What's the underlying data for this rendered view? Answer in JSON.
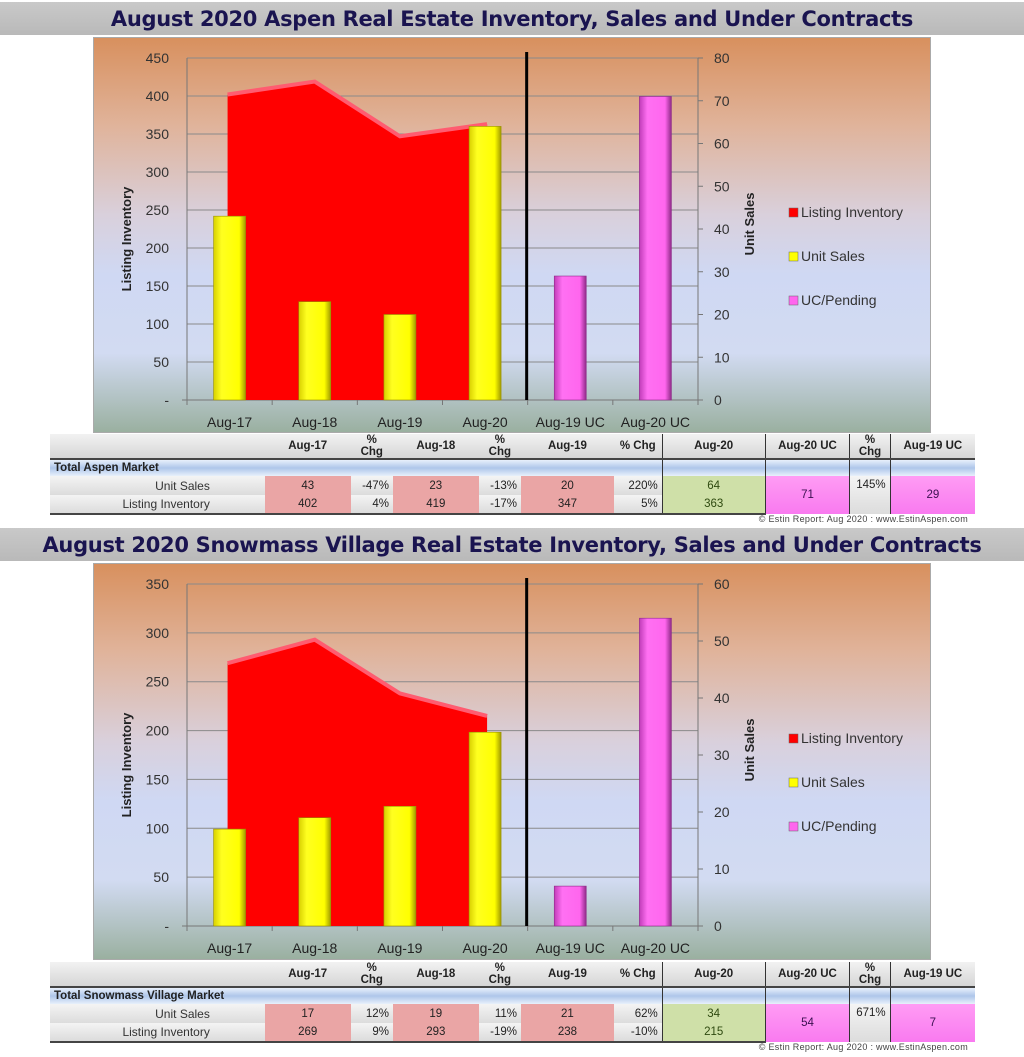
{
  "aspen": {
    "title": "August 2020 Aspen Real Estate Inventory, Sales and Under Contracts",
    "left_axis_label": "Listing Inventory",
    "right_axis_label": "Unit Sales",
    "left_ticks": [
      "450",
      "400",
      "350",
      "300",
      "250",
      "200",
      "150",
      "100",
      "50",
      "-"
    ],
    "right_ticks": [
      "80",
      "70",
      "60",
      "50",
      "40",
      "30",
      "20",
      "10",
      "0"
    ],
    "categories": [
      "Aug-17",
      "Aug-18",
      "Aug-19",
      "Aug-20",
      "Aug-19 UC",
      "Aug-20 UC"
    ],
    "legend": [
      "Listing Inventory",
      "Unit Sales",
      "UC/Pending"
    ],
    "table": {
      "headers": [
        "Aug-17",
        "% Chg",
        "Aug-18",
        "% Chg",
        "Aug-19",
        "% Chg",
        "Aug-20",
        "Aug-20 UC",
        "% Chg",
        "Aug-19 UC"
      ],
      "section_label": "Total Aspen Market",
      "rows": [
        {
          "label": "Unit Sales",
          "cells": [
            "43",
            "-47%",
            "23",
            "-13%",
            "20",
            "220%",
            "64",
            "71",
            "145%",
            "29"
          ]
        },
        {
          "label": "Listing Inventory",
          "cells": [
            "402",
            "4%",
            "419",
            "-17%",
            "347",
            "5%",
            "363",
            "",
            "",
            ""
          ]
        }
      ]
    },
    "credit": "© Estin Report:  Aug  2020 :  www.EstinAspen.com"
  },
  "snowmass": {
    "title": "August 2020 Snowmass Village Real Estate Inventory, Sales and Under Contracts",
    "left_axis_label": "Listing Inventory",
    "right_axis_label": "Unit Sales",
    "left_ticks": [
      "350",
      "300",
      "250",
      "200",
      "150",
      "100",
      "50",
      "-"
    ],
    "right_ticks": [
      "60",
      "50",
      "40",
      "30",
      "20",
      "10",
      "0"
    ],
    "categories": [
      "Aug-17",
      "Aug-18",
      "Aug-19",
      "Aug-20",
      "Aug-19 UC",
      "Aug-20 UC"
    ],
    "legend": [
      "Listing Inventory",
      "Unit Sales",
      "UC/Pending"
    ],
    "table": {
      "headers": [
        "Aug-17",
        "% Chg",
        "Aug-18",
        "% Chg",
        "Aug-19",
        "% Chg",
        "Aug-20",
        "Aug-20 UC",
        "% Chg",
        "Aug-19 UC"
      ],
      "section_label": "Total Snowmass Village Market",
      "rows": [
        {
          "label": "Unit Sales",
          "cells": [
            "17",
            "12%",
            "19",
            "11%",
            "21",
            "62%",
            "34",
            "54",
            "671%",
            "7"
          ]
        },
        {
          "label": "Listing Inventory",
          "cells": [
            "269",
            "9%",
            "293",
            "-19%",
            "238",
            "-10%",
            "215",
            "",
            "",
            ""
          ]
        }
      ]
    },
    "credit": "© Estin Report:  Aug  2020 :  www.EstinAspen.com"
  },
  "colors": {
    "listing_inventory": "#ff0000",
    "unit_sales": "#ffff00",
    "uc_pending": "#ff66ee",
    "title_text": "#1a1450"
  },
  "chart_data": [
    {
      "type": "bar",
      "title": "August 2020 Aspen Real Estate Inventory, Sales and Under Contracts",
      "categories": [
        "Aug-17",
        "Aug-18",
        "Aug-19",
        "Aug-20",
        "Aug-19 UC",
        "Aug-20 UC"
      ],
      "series": [
        {
          "name": "Listing Inventory",
          "chart_type": "area",
          "axis": "left",
          "values": [
            402,
            419,
            347,
            363,
            null,
            null
          ]
        },
        {
          "name": "Unit Sales",
          "chart_type": "bar",
          "axis": "right",
          "values": [
            43,
            23,
            20,
            64,
            null,
            null
          ]
        },
        {
          "name": "UC/Pending",
          "chart_type": "bar",
          "axis": "right",
          "values": [
            null,
            null,
            null,
            null,
            29,
            71
          ]
        }
      ],
      "ylabel": "Listing Inventory",
      "y2label": "Unit Sales",
      "ylim": [
        0,
        450
      ],
      "y2lim": [
        0,
        80
      ],
      "grid": true,
      "legend_position": "right"
    },
    {
      "type": "bar",
      "title": "August 2020 Snowmass Village Real Estate Inventory, Sales and Under Contracts",
      "categories": [
        "Aug-17",
        "Aug-18",
        "Aug-19",
        "Aug-20",
        "Aug-19 UC",
        "Aug-20 UC"
      ],
      "series": [
        {
          "name": "Listing Inventory",
          "chart_type": "area",
          "axis": "left",
          "values": [
            269,
            293,
            238,
            215,
            null,
            null
          ]
        },
        {
          "name": "Unit Sales",
          "chart_type": "bar",
          "axis": "right",
          "values": [
            17,
            19,
            21,
            34,
            null,
            null
          ]
        },
        {
          "name": "UC/Pending",
          "chart_type": "bar",
          "axis": "right",
          "values": [
            null,
            null,
            null,
            null,
            7,
            54
          ]
        }
      ],
      "ylabel": "Listing Inventory",
      "y2label": "Unit Sales",
      "ylim": [
        0,
        350
      ],
      "y2lim": [
        0,
        60
      ],
      "grid": true,
      "legend_position": "right"
    }
  ]
}
